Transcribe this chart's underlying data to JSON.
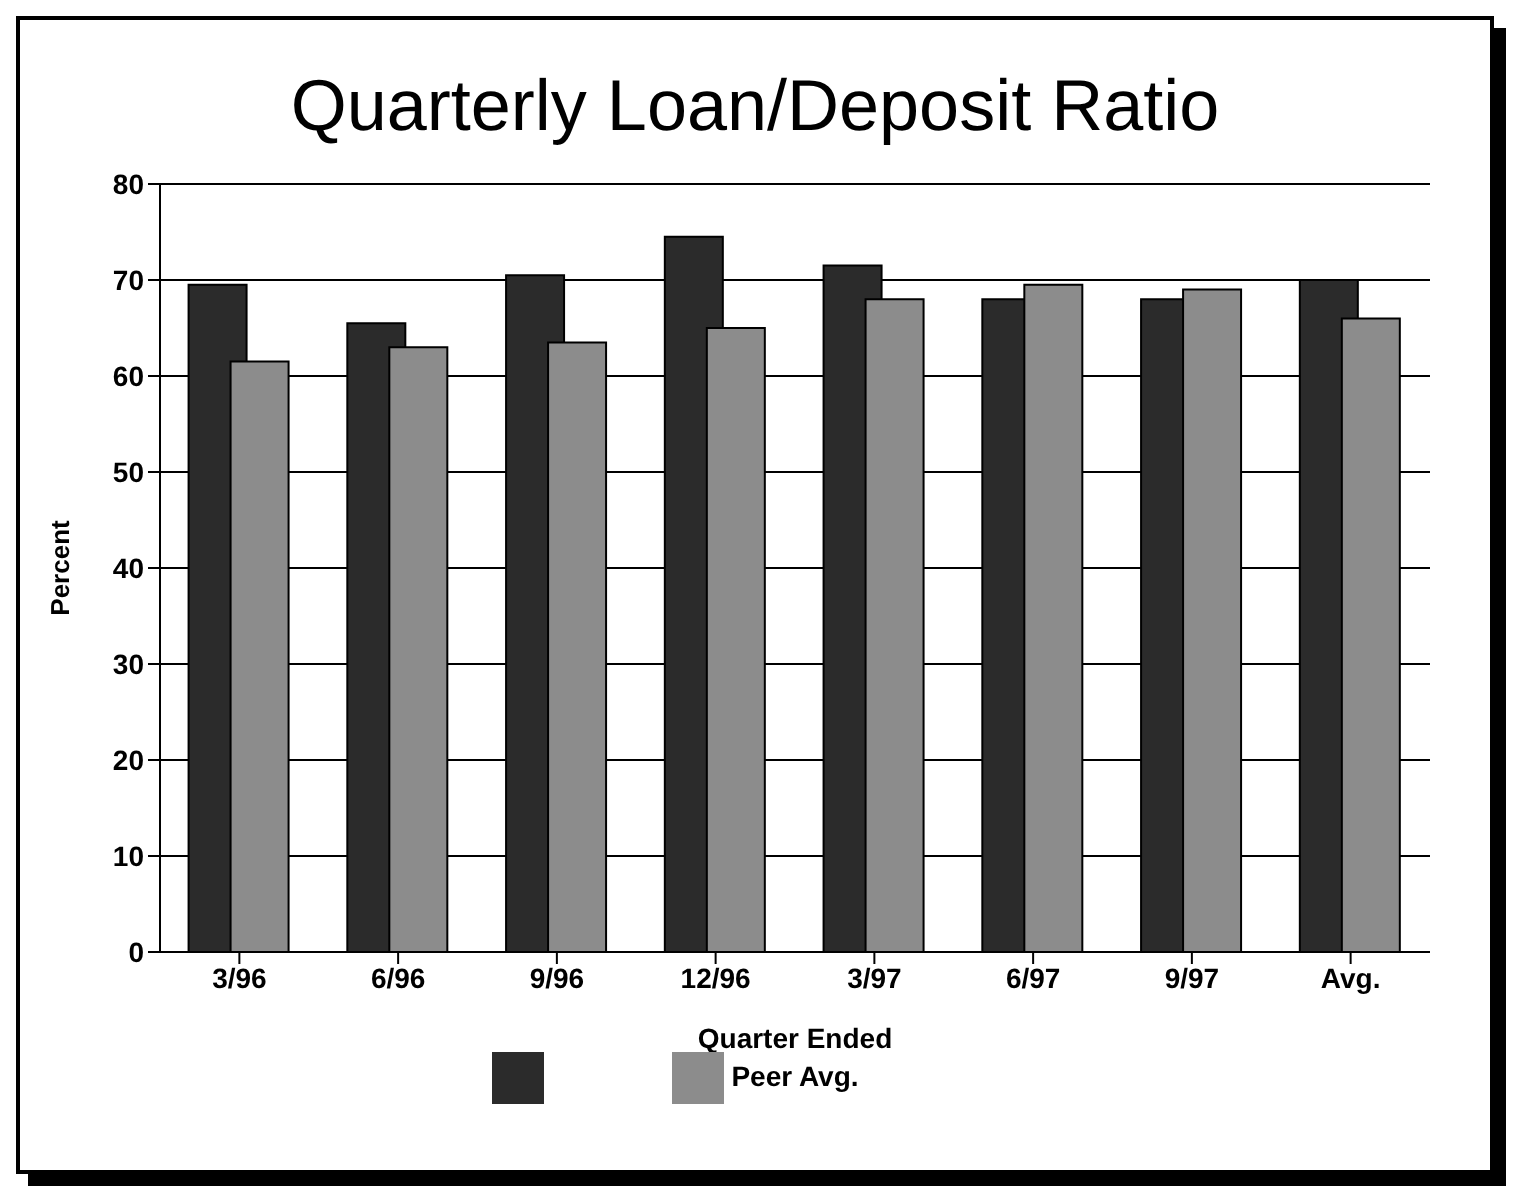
{
  "chart_data": {
    "type": "bar",
    "title": "Quarterly Loan/Deposit Ratio",
    "xlabel": "Quarter Ended",
    "ylabel": "Percent",
    "categories": [
      "3/96",
      "6/96",
      "9/96",
      "12/96",
      "3/97",
      "6/97",
      "9/97",
      "Avg."
    ],
    "series": [
      {
        "color": "#2b2b2b",
        "values": [
          69.5,
          65.5,
          70.5,
          74.5,
          71.5,
          68,
          68,
          70
        ]
      },
      {
        "name": "Peer Avg.",
        "color": "#8c8c8c",
        "values": [
          61.5,
          63,
          63.5,
          65,
          68,
          69.5,
          69,
          66
        ]
      }
    ],
    "ylim": [
      0,
      80
    ],
    "yticks": [
      0,
      10,
      20,
      30,
      40,
      50,
      60,
      70,
      80
    ],
    "grid": "y",
    "legend": "bottom"
  }
}
